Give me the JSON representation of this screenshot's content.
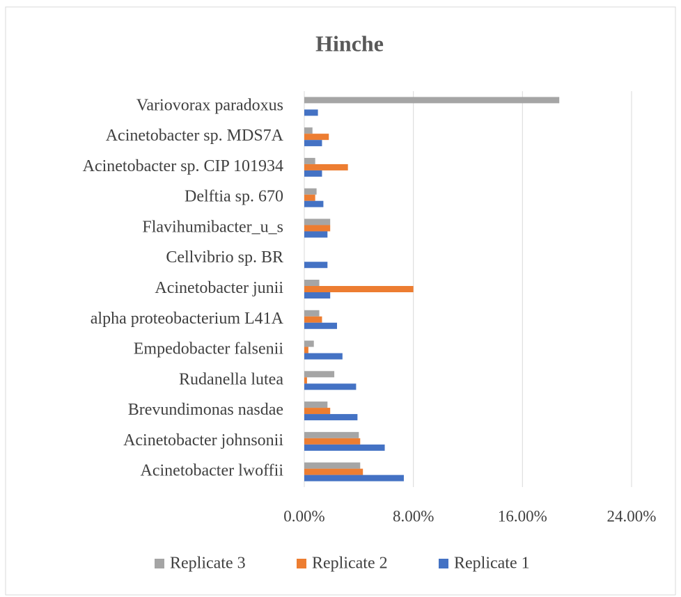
{
  "chart_data": {
    "type": "hbar",
    "title": "Hinche",
    "categories": [
      "Variovorax paradoxus",
      "Acinetobacter sp. MDS7A",
      "Acinetobacter sp. CIP 101934",
      "Delftia sp. 670",
      "Flavihumibacter_u_s",
      "Cellvibrio sp. BR",
      "Acinetobacter junii",
      "alpha proteobacterium L41A",
      "Empedobacter falsenii",
      "Rudanella lutea",
      "Brevundimonas nasdae",
      "Acinetobacter johnsonii",
      "Acinetobacter lwoffii"
    ],
    "series": [
      {
        "name": "Replicate 3",
        "color": "#a5a5a5",
        "values": [
          18.7,
          0.6,
          0.8,
          0.9,
          1.9,
          0,
          1.1,
          1.1,
          0.7,
          2.2,
          1.7,
          4.0,
          4.1
        ]
      },
      {
        "name": "Replicate 2",
        "color": "#ed7d31",
        "values": [
          0,
          1.8,
          3.2,
          0.8,
          1.9,
          0,
          8.0,
          1.3,
          0.3,
          0.2,
          1.9,
          4.1,
          4.3
        ]
      },
      {
        "name": "Replicate 1",
        "color": "#4472c4",
        "values": [
          1.0,
          1.3,
          1.3,
          1.4,
          1.7,
          1.7,
          1.9,
          2.4,
          2.8,
          3.8,
          3.9,
          5.9,
          7.3
        ]
      }
    ],
    "xlim": [
      0,
      24
    ],
    "xticks": [
      {
        "value": 0,
        "label": "0.00%"
      },
      {
        "value": 8,
        "label": "8.00%"
      },
      {
        "value": 16,
        "label": "16.00%"
      },
      {
        "value": 24,
        "label": "24.00%"
      }
    ],
    "grid": true
  }
}
